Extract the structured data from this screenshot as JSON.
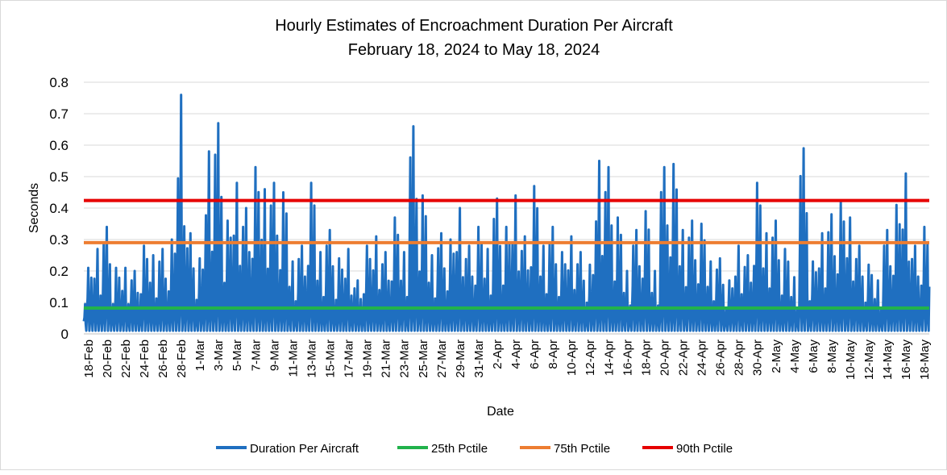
{
  "chart_data": {
    "type": "line",
    "title": "Hourly Estimates of Encroachment Duration Per Aircraft",
    "subtitle": "February 18, 2024 to May 18, 2024",
    "xlabel": "Date",
    "ylabel": "Seconds",
    "ylim": [
      0,
      0.8
    ],
    "y_ticks": [
      "0",
      "0.1",
      "0.2",
      "0.3",
      "0.4",
      "0.5",
      "0.6",
      "0.7",
      "0.8"
    ],
    "grid": true,
    "x_tick_labels": [
      "18-Feb",
      "20-Feb",
      "22-Feb",
      "24-Feb",
      "26-Feb",
      "28-Feb",
      "1-Mar",
      "3-Mar",
      "5-Mar",
      "7-Mar",
      "9-Mar",
      "11-Mar",
      "13-Mar",
      "15-Mar",
      "17-Mar",
      "19-Mar",
      "21-Mar",
      "23-Mar",
      "25-Mar",
      "27-Mar",
      "29-Mar",
      "31-Mar",
      "2-Apr",
      "4-Apr",
      "6-Apr",
      "8-Apr",
      "10-Apr",
      "12-Apr",
      "14-Apr",
      "16-Apr",
      "18-Apr",
      "20-Apr",
      "22-Apr",
      "24-Apr",
      "26-Apr",
      "28-Apr",
      "30-Apr",
      "2-May",
      "4-May",
      "6-May",
      "8-May",
      "10-May",
      "12-May",
      "14-May",
      "16-May",
      "18-May"
    ],
    "num_days": 91,
    "daily_peaks": [
      0.21,
      0.27,
      0.34,
      0.21,
      0.21,
      0.2,
      0.28,
      0.25,
      0.27,
      0.3,
      0.76,
      0.32,
      0.24,
      0.58,
      0.67,
      0.36,
      0.48,
      0.4,
      0.53,
      0.46,
      0.48,
      0.45,
      0.23,
      0.28,
      0.48,
      0.26,
      0.33,
      0.24,
      0.27,
      0.17,
      0.28,
      0.31,
      0.26,
      0.37,
      0.26,
      0.66,
      0.44,
      0.25,
      0.32,
      0.3,
      0.4,
      0.28,
      0.34,
      0.27,
      0.43,
      0.34,
      0.44,
      0.31,
      0.47,
      0.28,
      0.34,
      0.26,
      0.31,
      0.26,
      0.22,
      0.55,
      0.53,
      0.37,
      0.2,
      0.33,
      0.39,
      0.2,
      0.53,
      0.54,
      0.33,
      0.36,
      0.35,
      0.23,
      0.24,
      0.17,
      0.28,
      0.25,
      0.48,
      0.32,
      0.36,
      0.27,
      0.18,
      0.59,
      0.23,
      0.32,
      0.38,
      0.42,
      0.37,
      0.28,
      0.22,
      0.17,
      0.33,
      0.41,
      0.51,
      0.28,
      0.34
    ],
    "series": [
      {
        "name": "Duration Per Aircraft",
        "color": "#1f6fc0",
        "note": "hourly values, daily oscillation"
      },
      {
        "name": "25th Pctile",
        "color": "#21b24b",
        "value": 0.082
      },
      {
        "name": "75th Pctile",
        "color": "#ed7d31",
        "value": 0.29
      },
      {
        "name": "90th Pctile",
        "color": "#e60000",
        "value": 0.424
      }
    ]
  }
}
